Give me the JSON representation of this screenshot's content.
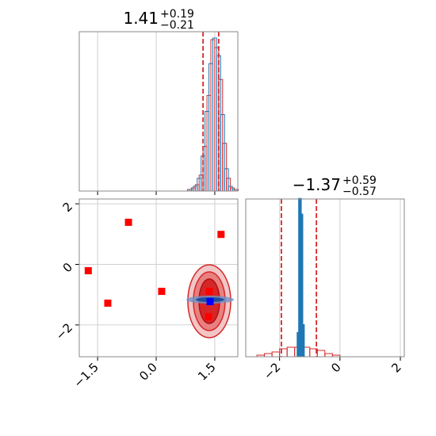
{
  "chart_data": [
    {
      "type": "histogram",
      "title": "1.41",
      "title_upper": "+0.19",
      "title_lower": "−0.21",
      "xlim": [
        -1.97,
        2.09
      ],
      "ylim": [
        0,
        100
      ],
      "grid": true,
      "quantiles": [
        1.2,
        1.6
      ],
      "quantile_color": "#d62728",
      "series": [
        {
          "color": "#d62728",
          "bins": [
            0.7,
            0.8,
            0.9,
            1.0,
            1.1,
            1.2,
            1.3,
            1.4,
            1.5,
            1.6,
            1.7,
            1.8,
            1.9,
            2.0,
            2.1
          ],
          "values": [
            0,
            1,
            2,
            4,
            10,
            28,
            60,
            95,
            90,
            70,
            30,
            8,
            2,
            1
          ]
        },
        {
          "color": "#1f77b4",
          "bins": [
            0.75,
            0.85,
            0.95,
            1.05,
            1.15,
            1.25,
            1.35,
            1.45,
            1.55,
            1.65,
            1.75,
            1.85,
            1.95,
            2.05
          ],
          "values": [
            0,
            1,
            3,
            8,
            22,
            50,
            80,
            96,
            85,
            48,
            14,
            3,
            1
          ]
        }
      ]
    },
    {
      "type": "scatter",
      "xlim": [
        -1.97,
        2.09
      ],
      "ylim": [
        -3.05,
        2.16
      ],
      "grid": true,
      "xticks": [
        {
          "value": -1.5,
          "label": "−1.5"
        },
        {
          "value": 0,
          "label": "0.0"
        },
        1.5
      ],
      "yticks": [
        {
          "value": -2,
          "label": "−2"
        },
        0,
        2
      ],
      "series": [
        {
          "color": "#ff0000",
          "x": [
            -1.74,
            -1.24,
            -0.71,
            0.14,
            1.66,
            1.36,
            1.34
          ],
          "y": [
            -0.21,
            -1.28,
            1.39,
            -0.89,
            0.99,
            -0.89,
            -1.73
          ]
        },
        {
          "color": "#0000ff",
          "x": [
            1.38
          ],
          "y": [
            -1.23
          ]
        }
      ]
    },
    {
      "type": "histogram",
      "title": "−1.37",
      "title_upper": "+0.59",
      "title_lower": "−0.57",
      "xlim": [
        -3.12,
        2.13
      ],
      "ylim": [
        0,
        100
      ],
      "grid": true,
      "xticks": [
        {
          "value": -2,
          "label": "−2"
        },
        0,
        2
      ],
      "quantiles": [
        -1.94,
        -0.78
      ],
      "quantile_color": "#d62728",
      "series": [
        {
          "color": "#d62728",
          "bins": [
            -2.75,
            -2.5,
            -2.25,
            -2.0,
            -1.75,
            -1.5,
            -1.25,
            -1.0,
            -0.75,
            -0.5,
            -0.25,
            0.0
          ],
          "values": [
            1,
            2,
            3,
            5,
            6,
            6,
            6,
            5,
            4,
            2,
            1
          ]
        },
        {
          "color": "#1f77b4",
          "bins": [
            -1.4,
            -1.35,
            -1.3,
            -1.25,
            -1.2
          ],
          "values": [
            15,
            100,
            90,
            20
          ]
        }
      ]
    }
  ]
}
